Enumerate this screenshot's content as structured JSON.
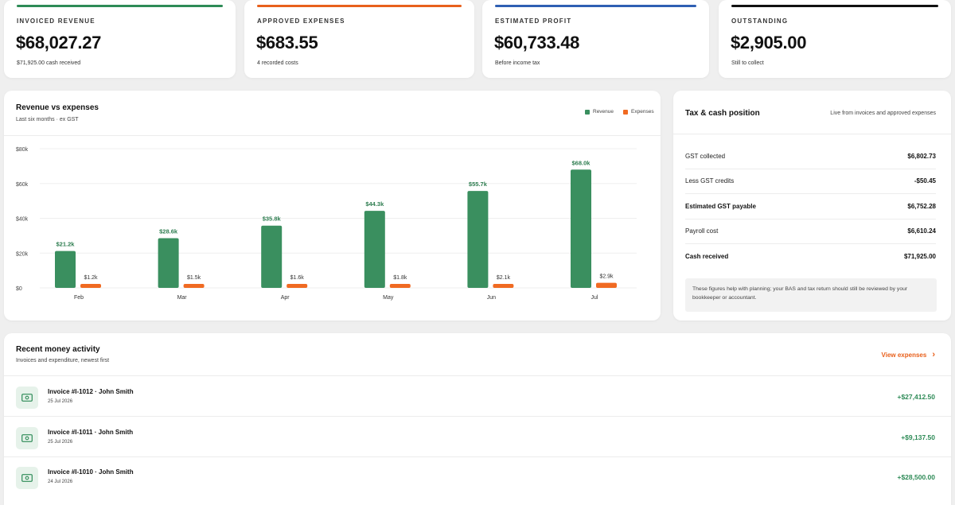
{
  "kpis": [
    {
      "label": "INVOICED REVENUE",
      "value": "$68,027.27",
      "sub": "$71,925.00 cash received",
      "accent": "#2e8b57"
    },
    {
      "label": "APPROVED EXPENSES",
      "value": "$683.55",
      "sub": "4 recorded costs",
      "accent": "#e8601c"
    },
    {
      "label": "ESTIMATED PROFIT",
      "value": "$60,733.48",
      "sub": "Before income tax",
      "accent": "#2f5fb3"
    },
    {
      "label": "OUTSTANDING",
      "value": "$2,905.00",
      "sub": "Still to collect",
      "accent": "#111111"
    }
  ],
  "chart": {
    "title": "Revenue vs expenses",
    "subtitle": "Last six months · ex GST",
    "legend": {
      "revenue": "Revenue",
      "expenses": "Expenses"
    }
  },
  "chart_data": {
    "type": "bar",
    "categories": [
      "Feb",
      "Mar",
      "Apr",
      "May",
      "Jun",
      "Jul"
    ],
    "series": [
      {
        "name": "Revenue",
        "values": [
          21200,
          28600,
          35800,
          44300,
          55700,
          68000
        ],
        "labels": [
          "$21.2k",
          "$28.6k",
          "$35.8k",
          "$44.3k",
          "$55.7k",
          "$68.0k"
        ],
        "color": "#3a8f5f"
      },
      {
        "name": "Expenses",
        "values": [
          1200,
          1500,
          1600,
          1800,
          2100,
          2900
        ],
        "labels": [
          "$1.2k",
          "$1.5k",
          "$1.6k",
          "$1.8k",
          "$2.1k",
          "$2.9k"
        ],
        "color": "#f06a22"
      }
    ],
    "yticks": [
      0,
      20000,
      40000,
      60000,
      80000
    ],
    "ytick_labels": [
      "$0",
      "$20k",
      "$40k",
      "$60k",
      "$80k"
    ],
    "ylim": [
      0,
      80000
    ],
    "grid": true,
    "legend_position": "top-right"
  },
  "tax": {
    "title": "Tax & cash position",
    "subtitle": "Live from invoices and approved expenses",
    "rows": [
      {
        "label": "GST collected",
        "value": "$6,802.73",
        "bold": false
      },
      {
        "label": "Less GST credits",
        "value": "-$50.45",
        "bold": false
      },
      {
        "label": "Estimated GST payable",
        "value": "$6,752.28",
        "bold": true
      },
      {
        "label": "Payroll cost",
        "value": "$6,610.24",
        "bold": false
      },
      {
        "label": "Cash received",
        "value": "$71,925.00",
        "bold": true
      }
    ],
    "note": "These figures help with planning; your BAS and tax return should still be reviewed by your bookkeeper or accountant."
  },
  "activity": {
    "title": "Recent money activity",
    "subtitle": "Invoices and expenditure, newest first",
    "view_link": "View expenses",
    "items": [
      {
        "title": "Invoice #I-1012 · John Smith",
        "date": "25 Jul 2026",
        "amount": "+$27,412.50",
        "icon": "cash-icon"
      },
      {
        "title": "Invoice #I-1011 · John Smith",
        "date": "25 Jul 2026",
        "amount": "+$9,137.50",
        "icon": "cash-icon"
      },
      {
        "title": "Invoice #I-1010 · John Smith",
        "date": "24 Jul 2026",
        "amount": "+$28,500.00",
        "icon": "cash-icon"
      }
    ]
  }
}
